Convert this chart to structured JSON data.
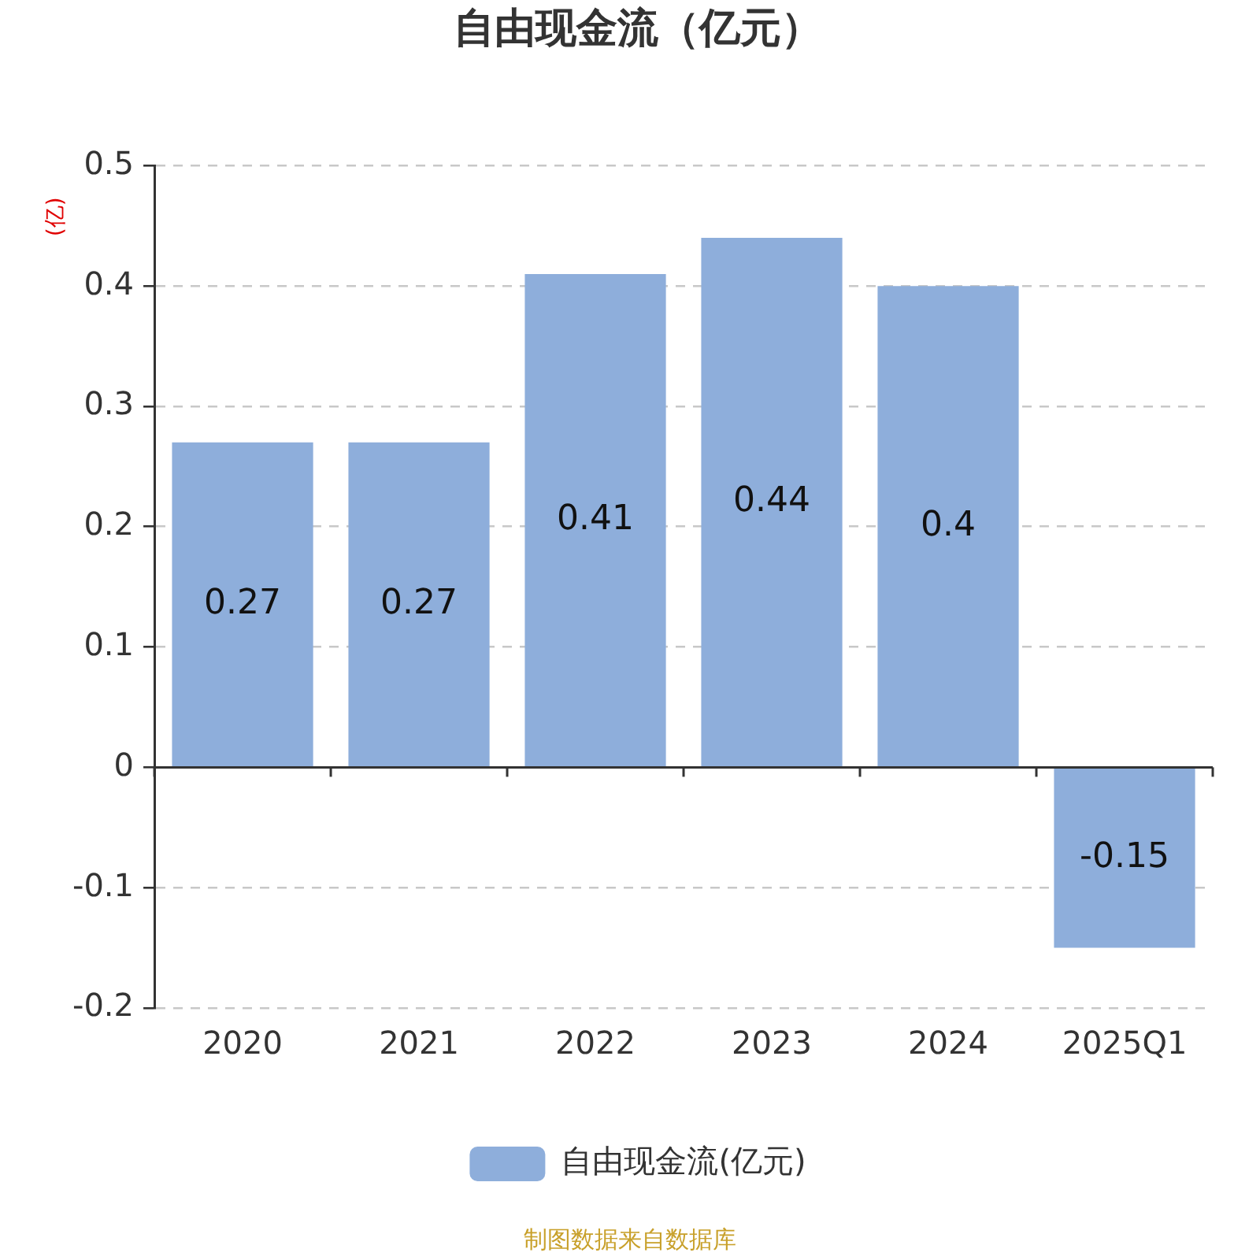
{
  "chart_data": {
    "type": "bar",
    "title": "自由现金流（亿元）",
    "ylabel": "(亿)",
    "categories": [
      "2020",
      "2021",
      "2022",
      "2023",
      "2024",
      "2025Q1"
    ],
    "series": [
      {
        "name": "自由现金流(亿元)",
        "color": "#8eaedb",
        "values": [
          0.27,
          0.27,
          0.41,
          0.44,
          0.4,
          -0.15
        ]
      }
    ],
    "ylim": [
      -0.2,
      0.5
    ],
    "yticks": [
      -0.2,
      -0.1,
      0,
      0.1,
      0.2,
      0.3,
      0.4,
      0.5
    ],
    "grid": "y",
    "legend": "bottom",
    "data_labels": true,
    "annotations": [
      "制图数据来自数据库"
    ]
  }
}
